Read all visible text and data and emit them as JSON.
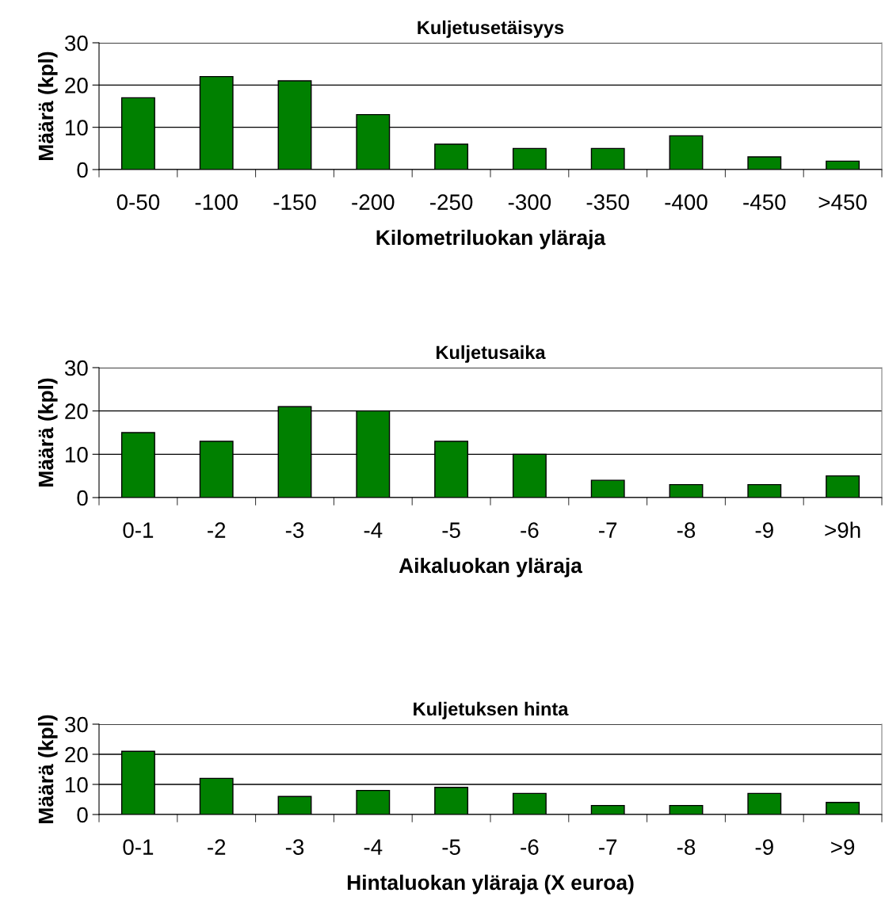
{
  "chart_data": [
    {
      "type": "bar",
      "title": "Kuljetusetäisyys",
      "xlabel": "Kilometriluokan yläraja",
      "ylabel": "Määrä (kpl)",
      "categories": [
        "0-50",
        "-100",
        "-150",
        "-200",
        "-250",
        "-300",
        "-350",
        "-400",
        "-450",
        ">450"
      ],
      "values": [
        17,
        22,
        21,
        13,
        6,
        5,
        5,
        8,
        3,
        2
      ],
      "color": "#008000",
      "ylim": [
        0,
        30
      ],
      "yticks": [
        0,
        10,
        20,
        30
      ],
      "grid": "y"
    },
    {
      "type": "bar",
      "title": "Kuljetusaika",
      "xlabel": "Aikaluokan yläraja",
      "ylabel": "Määrä (kpl)",
      "categories": [
        "0-1",
        "-2",
        "-3",
        "-4",
        "-5",
        "-6",
        "-7",
        "-8",
        "-9",
        ">9h"
      ],
      "values": [
        15,
        13,
        21,
        20,
        13,
        10,
        4,
        3,
        3,
        5
      ],
      "color": "#008000",
      "ylim": [
        0,
        30
      ],
      "yticks": [
        0,
        10,
        20,
        30
      ],
      "grid": "y"
    },
    {
      "type": "bar",
      "title": "Kuljetuksen hinta",
      "xlabel": "Hintaluokan yläraja (X euroa)",
      "ylabel": "Määrä (kpl)",
      "categories": [
        "0-1",
        "-2",
        "-3",
        "-4",
        "-5",
        "-6",
        "-7",
        "-8",
        "-9",
        ">9"
      ],
      "values": [
        21,
        12,
        6,
        8,
        9,
        7,
        3,
        3,
        7,
        4
      ],
      "color": "#008000",
      "ylim": [
        0,
        30
      ],
      "yticks": [
        0,
        10,
        20,
        30
      ],
      "grid": "y"
    }
  ]
}
